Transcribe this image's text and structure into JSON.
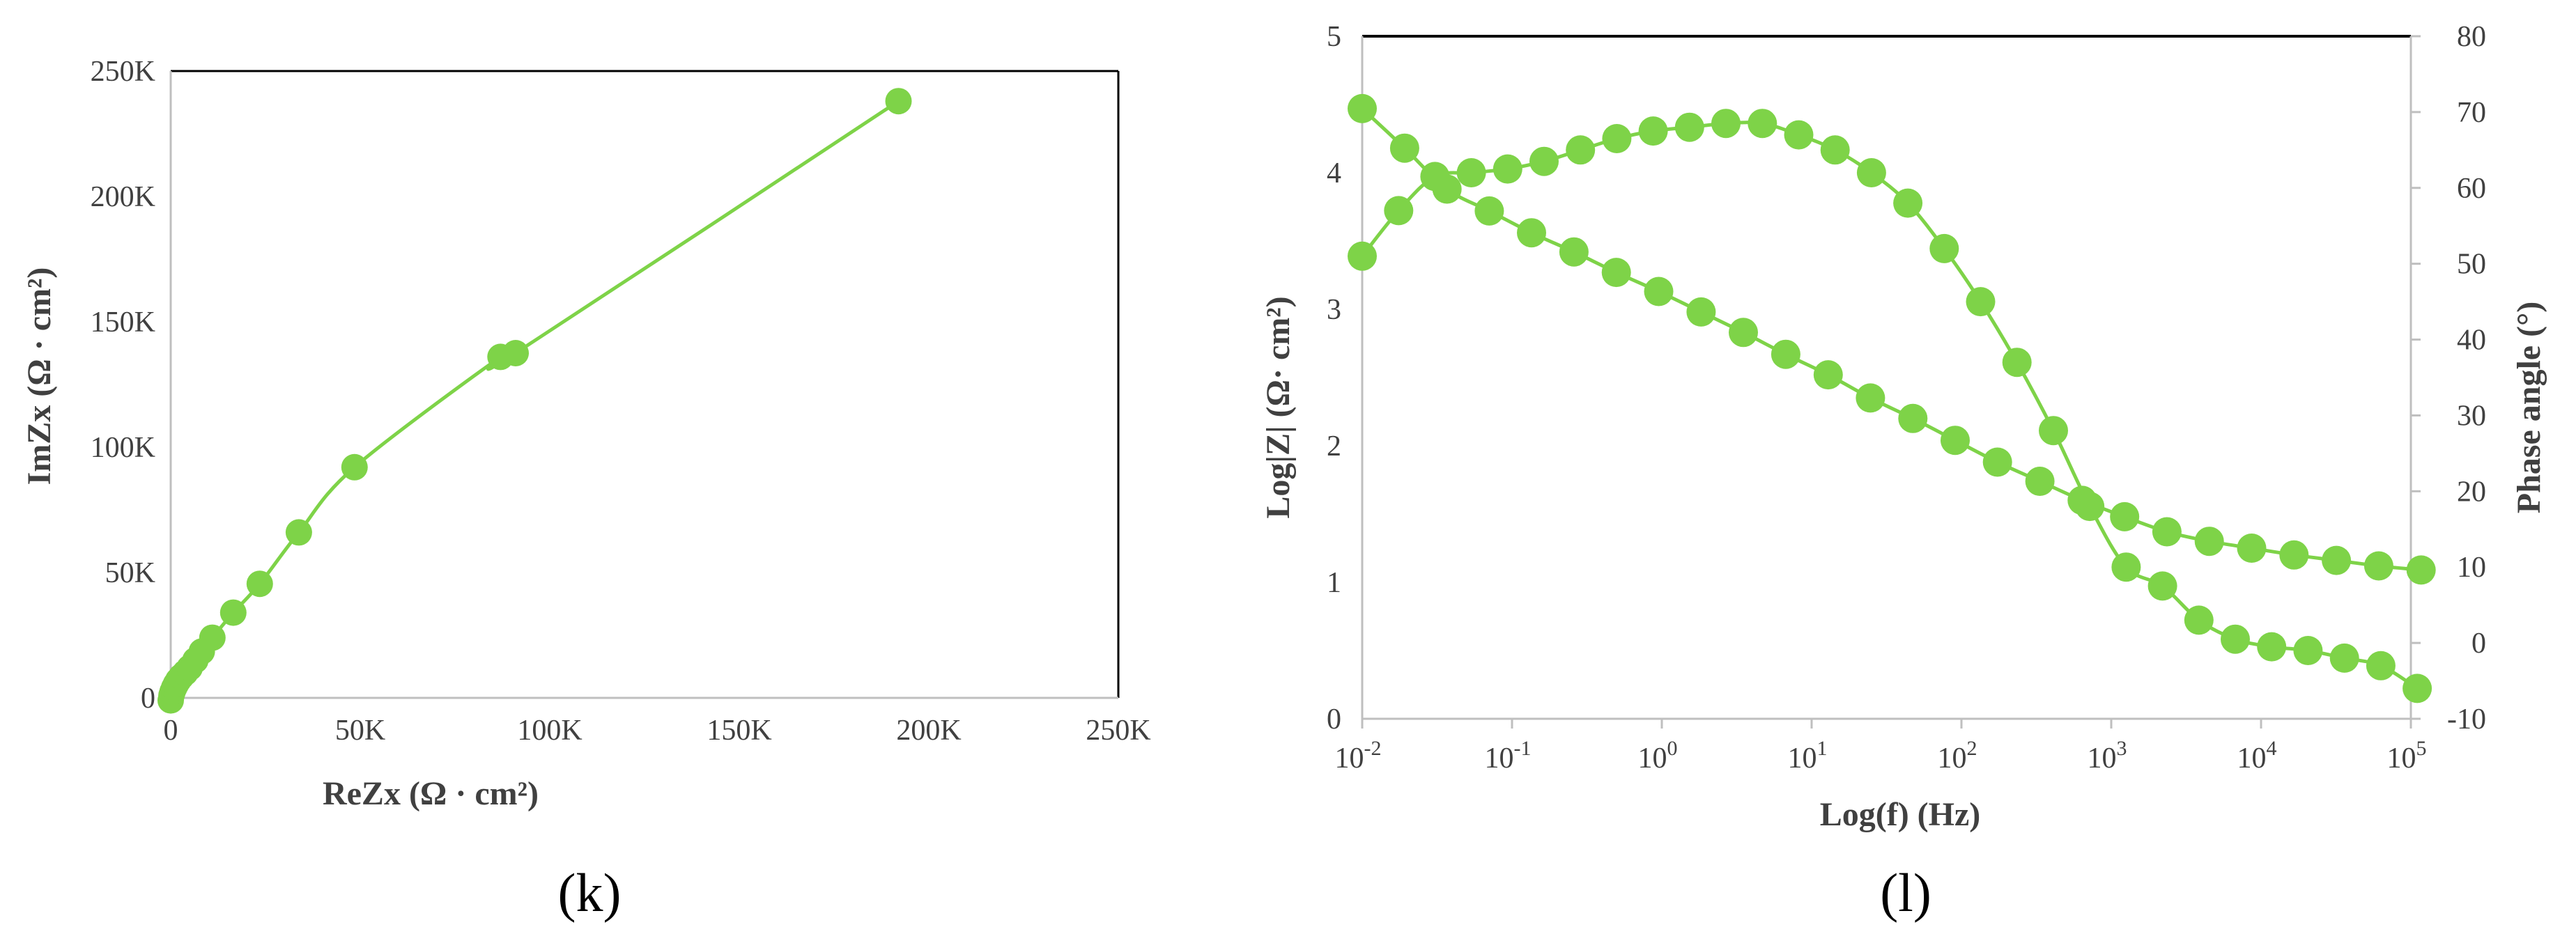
{
  "colors": {
    "series": "#7ED348",
    "frame": "#000000",
    "gridline": "#D9D9D9",
    "axis": "#BFBFBF",
    "text": "#404040"
  },
  "panel_labels": [
    "(k)",
    "(l)"
  ],
  "chart_data": [
    {
      "type": "scatter",
      "mode": "lines+markers",
      "xlabel": "ReZx (Ω · cm²)",
      "ylabel": "ImZx (Ω · cm²)",
      "xlim": [
        0,
        250000
      ],
      "ylim": [
        0,
        250000
      ],
      "x_ticks": [
        "0",
        "50K",
        "100K",
        "150K",
        "200K",
        "250K"
      ],
      "y_ticks": [
        "0",
        "50K",
        "100K",
        "150K",
        "200K",
        "250K"
      ],
      "grid": false,
      "legend": "none",
      "series": [
        {
          "x": [
            0,
            200,
            500,
            900,
            1400,
            2000,
            2800,
            3800,
            5000,
            6500,
            8200,
            11000,
            16500,
            23500,
            33800,
            48500,
            87000,
            91000,
            192000
          ],
          "y": [
            -1000,
            1000,
            2500,
            4000,
            5500,
            7000,
            8500,
            10000,
            12000,
            15000,
            18500,
            24000,
            34000,
            45500,
            66000,
            92000,
            136000,
            137500,
            238000
          ]
        }
      ]
    },
    {
      "type": "scatter",
      "mode": "lines+markers",
      "xlabel": "Log(f) (Hz)",
      "ylabel": "Log|Z| (Ω· cm²)",
      "y2label": "Phase angle (°)",
      "xscale": "log",
      "xlim": [
        0.01,
        100000
      ],
      "ylim": [
        0,
        5
      ],
      "y2lim": [
        -10,
        80
      ],
      "x_ticks": [
        {
          "base": "10",
          "exp": "-2"
        },
        {
          "base": "10",
          "exp": "-1"
        },
        {
          "base": "10",
          "exp": "0"
        },
        {
          "base": "10",
          "exp": "1"
        },
        {
          "base": "10",
          "exp": "2"
        },
        {
          "base": "10",
          "exp": "3"
        },
        {
          "base": "10",
          "exp": "4"
        },
        {
          "base": "10",
          "exp": "5"
        }
      ],
      "y_ticks": [
        "0",
        "1",
        "2",
        "3",
        "4",
        "5"
      ],
      "y2_ticks": [
        "-10",
        "0",
        "10",
        "20",
        "30",
        "40",
        "50",
        "60",
        "70",
        "80"
      ],
      "grid": false,
      "legend": "none",
      "series": [
        {
          "axis": "left",
          "x": [
            0.01,
            0.0192,
            0.0368,
            0.0705,
            0.135,
            0.259,
            0.497,
            0.953,
            1.83,
            3.5,
            6.72,
            12.9,
            24.7,
            47.4,
            90.8,
            174,
            334,
            640,
            1228,
            2354,
            4514,
            8657,
            16600,
            31830,
            61050,
            117000
          ],
          "y": [
            4.47,
            4.18,
            3.88,
            3.72,
            3.56,
            3.42,
            3.27,
            3.13,
            2.98,
            2.83,
            2.67,
            2.52,
            2.35,
            2.2,
            2.04,
            1.88,
            1.74,
            1.6,
            1.48,
            1.37,
            1.3,
            1.25,
            1.2,
            1.16,
            1.12,
            1.09
          ]
        },
        {
          "axis": "right",
          "x": [
            0.01,
            0.0175,
            0.0306,
            0.0535,
            0.0936,
            0.1637,
            0.2863,
            0.5009,
            0.8761,
            1.532,
            2.68,
            4.689,
            8.201,
            14.35,
            25.09,
            43.89,
            76.78,
            134.3,
            234.9,
            410.9,
            718.8,
            1257,
            2199,
            3847,
            6730,
            11770,
            20590,
            36020,
            63010,
            110200
          ],
          "y": [
            51,
            57,
            61.5,
            62,
            62.5,
            63.5,
            65,
            66.5,
            67.5,
            68,
            68.5,
            68.5,
            67,
            65,
            62,
            58,
            52,
            45,
            37,
            28,
            18,
            10,
            7.5,
            3,
            0.5,
            -0.5,
            -1,
            -2,
            -3,
            -6
          ]
        }
      ]
    }
  ]
}
